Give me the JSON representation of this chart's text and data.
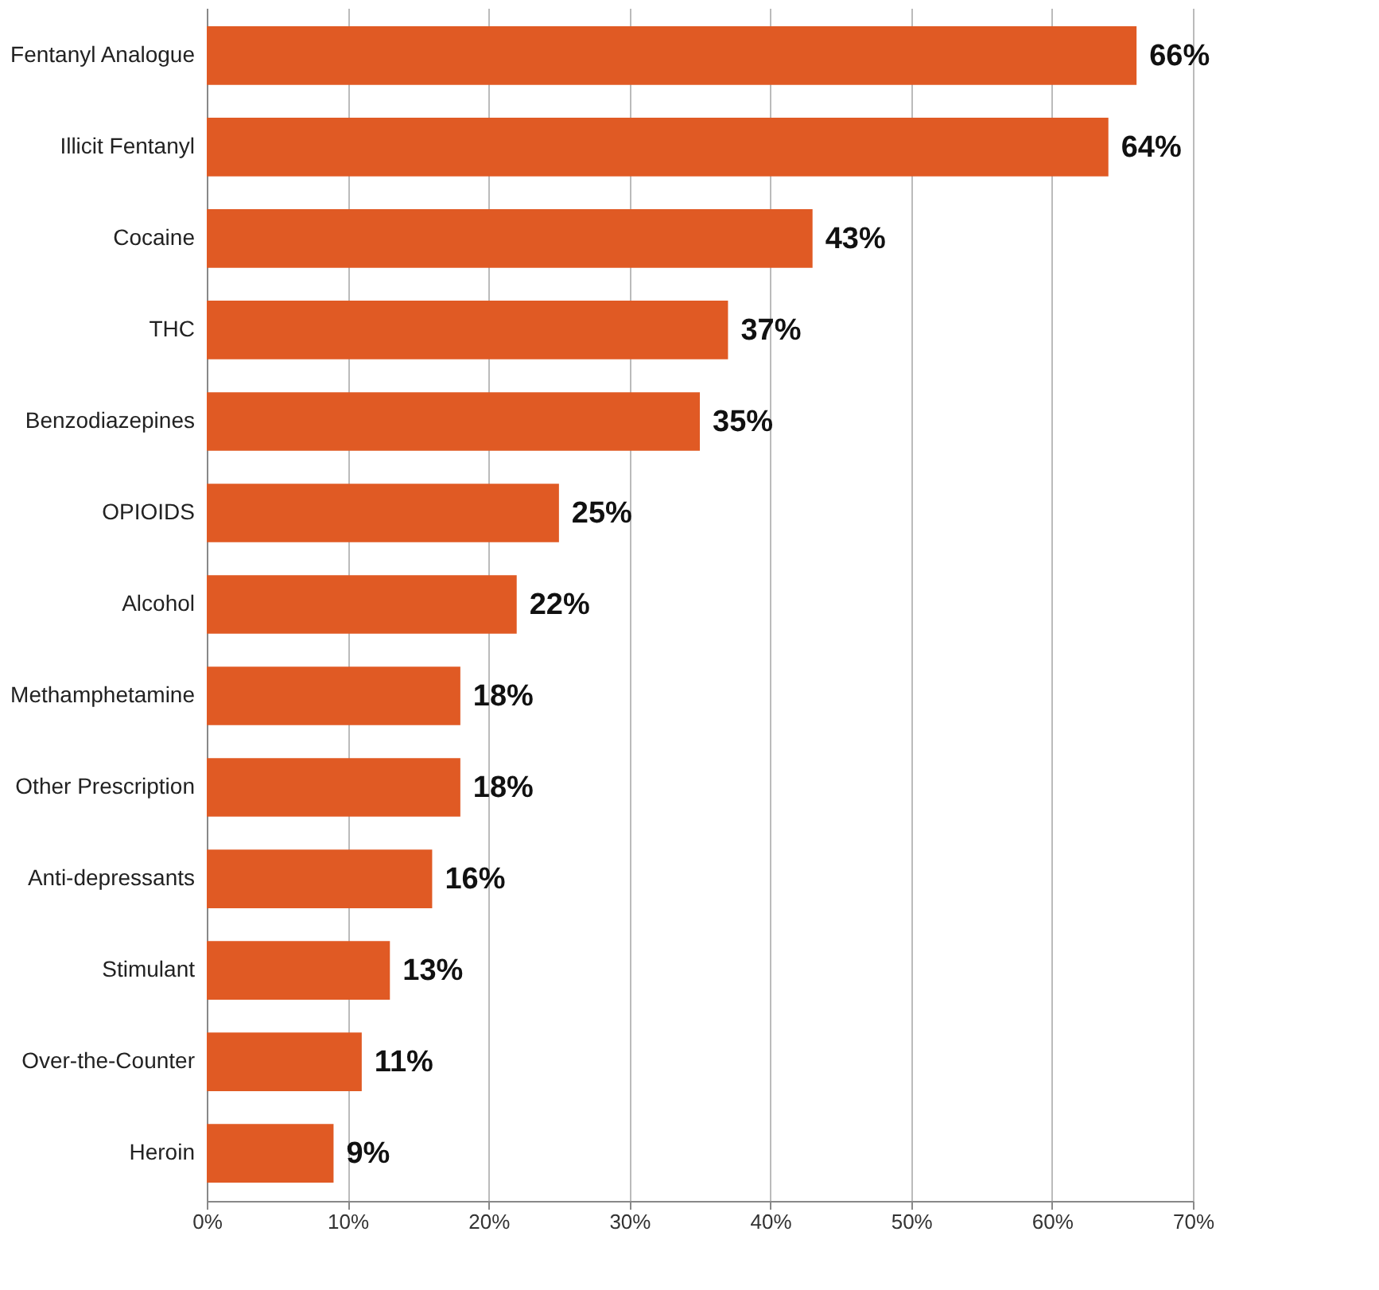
{
  "chart_data": {
    "type": "bar",
    "orientation": "horizontal",
    "categories": [
      "Fentanyl Analogue",
      "Illicit Fentanyl",
      "Cocaine",
      "THC",
      "Benzodiazepines",
      "OPIOIDS",
      "Alcohol",
      "Methamphetamine",
      "Other Prescription",
      "Anti-depressants",
      "Stimulant",
      "Over-the-Counter",
      "Heroin"
    ],
    "values": [
      66,
      64,
      43,
      37,
      35,
      25,
      22,
      18,
      18,
      16,
      13,
      11,
      9
    ],
    "value_labels": [
      "66%",
      "64%",
      "43%",
      "37%",
      "35%",
      "25%",
      "22%",
      "18%",
      "18%",
      "16%",
      "13%",
      "11%",
      "9%"
    ],
    "color": "#e05a24",
    "xlim": [
      0,
      70
    ],
    "xticks": [
      {
        "value": 0,
        "label": "0%"
      },
      {
        "value": 10,
        "label": "10%"
      },
      {
        "value": 20,
        "label": "20%"
      },
      {
        "value": 30,
        "label": "30%"
      },
      {
        "value": 40,
        "label": "40%"
      },
      {
        "value": 50,
        "label": "50%"
      },
      {
        "value": 60,
        "label": "60%"
      },
      {
        "value": 70,
        "label": "70%"
      }
    ],
    "grid": "x"
  }
}
